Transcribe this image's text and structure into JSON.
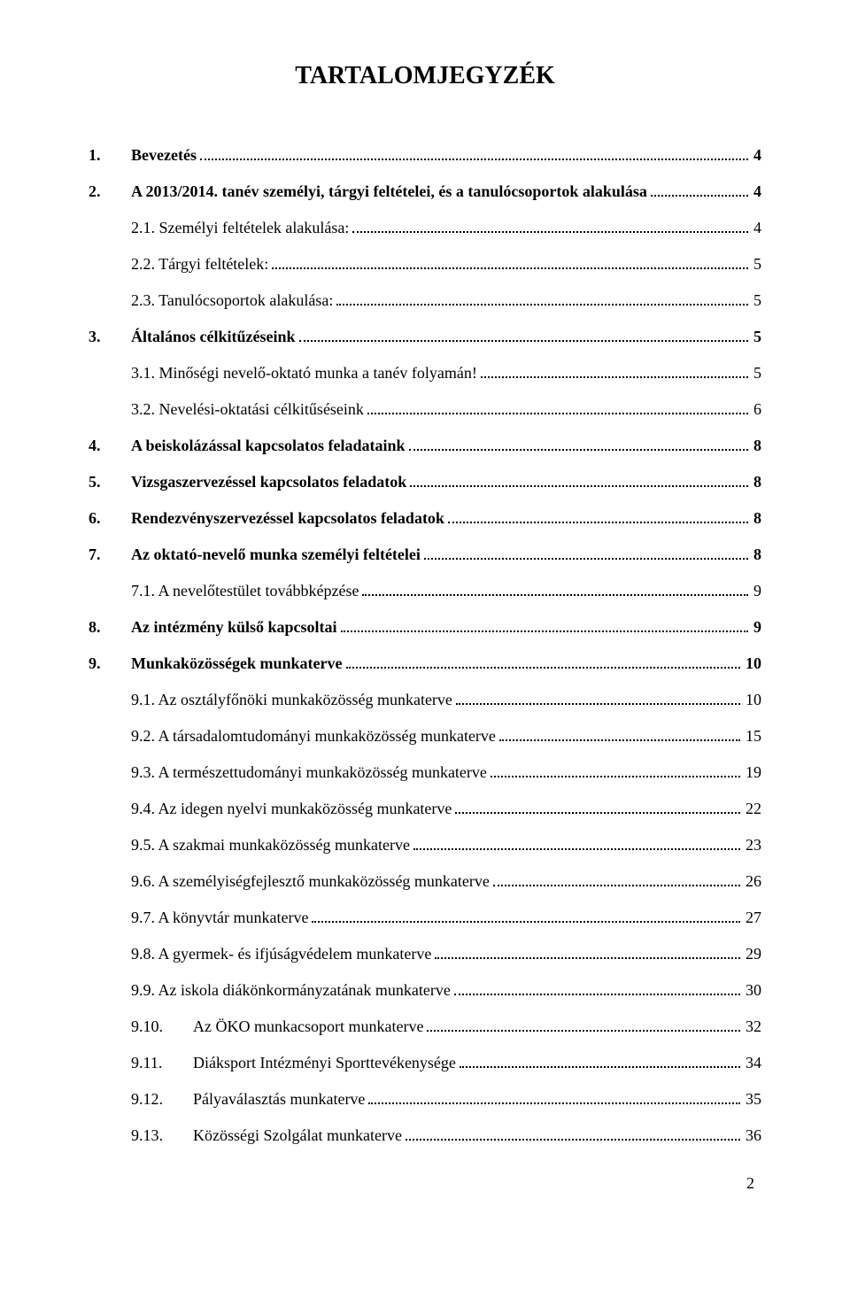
{
  "title": "TARTALOMJEGYZÉK",
  "page_number": "2",
  "typography": {
    "font_family": "Times New Roman",
    "title_fontsize": 28,
    "body_fontsize": 18,
    "text_color": "#000000",
    "background_color": "#ffffff",
    "dot_leader_color": "#000000"
  },
  "entries": [
    {
      "num": "1.",
      "text": "Bevezetés",
      "page": "4",
      "bold": true,
      "indent": 0
    },
    {
      "num": "2.",
      "text": "A 2013/2014. tanév személyi, tárgyi feltételei, és a tanulócsoportok alakulása",
      "page": "4",
      "bold": true,
      "indent": 0
    },
    {
      "num": "",
      "text": "2.1. Személyi feltételek alakulása:",
      "page": "4",
      "bold": false,
      "indent": 1
    },
    {
      "num": "",
      "text": "2.2. Tárgyi feltételek:",
      "page": "5",
      "bold": false,
      "indent": 1
    },
    {
      "num": "",
      "text": "2.3. Tanulócsoportok alakulása:",
      "page": "5",
      "bold": false,
      "indent": 1
    },
    {
      "num": "3.",
      "text": "Általános célkitűzéseink",
      "page": "5",
      "bold": true,
      "indent": 0
    },
    {
      "num": "",
      "text": "3.1. Minőségi nevelő-oktató munka a tanév folyamán!",
      "page": "5",
      "bold": false,
      "indent": 1
    },
    {
      "num": "",
      "text": "3.2. Nevelési-oktatási célkitűséseink",
      "page": "6",
      "bold": false,
      "indent": 1
    },
    {
      "num": "4.",
      "text": "A beiskolázással kapcsolatos feladataink",
      "page": "8",
      "bold": true,
      "indent": 0
    },
    {
      "num": "5.",
      "text": "Vizsgaszervezéssel kapcsolatos feladatok",
      "page": "8",
      "bold": true,
      "indent": 0
    },
    {
      "num": "6.",
      "text": "Rendezvényszervezéssel kapcsolatos feladatok",
      "page": "8",
      "bold": true,
      "indent": 0
    },
    {
      "num": "7.",
      "text": "Az oktató-nevelő munka személyi feltételei",
      "page": "8",
      "bold": true,
      "indent": 0
    },
    {
      "num": "",
      "text": "7.1. A nevelőtestület továbbképzése",
      "page": "9",
      "bold": false,
      "indent": 1
    },
    {
      "num": "8.",
      "text": "Az intézmény külső kapcsoltai",
      "page": "9",
      "bold": true,
      "indent": 0
    },
    {
      "num": "9.",
      "text": "Munkaközösségek munkaterve",
      "page": "10",
      "bold": true,
      "indent": 0
    },
    {
      "num": "",
      "text": "9.1. Az osztályfőnöki munkaközösség munkaterve",
      "page": "10",
      "bold": false,
      "indent": 1
    },
    {
      "num": "",
      "text": "9.2. A társadalomtudományi munkaközösség munkaterve",
      "page": "15",
      "bold": false,
      "indent": 1
    },
    {
      "num": "",
      "text": "9.3. A természettudományi munkaközösség munkaterve",
      "page": "19",
      "bold": false,
      "indent": 1
    },
    {
      "num": "",
      "text": "9.4. Az idegen nyelvi munkaközösség munkaterve",
      "page": "22",
      "bold": false,
      "indent": 1
    },
    {
      "num": "",
      "text": "9.5. A szakmai munkaközösség munkaterve",
      "page": "23",
      "bold": false,
      "indent": 1
    },
    {
      "num": "",
      "text": "9.6. A személyiségfejlesztő munkaközösség munkaterve",
      "page": "26",
      "bold": false,
      "indent": 1
    },
    {
      "num": "",
      "text": "9.7. A könyvtár munkaterve",
      "page": "27",
      "bold": false,
      "indent": 1
    },
    {
      "num": "",
      "text": "9.8. A gyermek- és ifjúságvédelem munkaterve",
      "page": "29",
      "bold": false,
      "indent": 1
    },
    {
      "num": "",
      "text": "9.9. Az iskola diákönkormányzatának munkaterve",
      "page": "30",
      "bold": false,
      "indent": 1
    },
    {
      "num": "9.10.",
      "text": "Az ÖKO munkacsoport munkaterve",
      "page": "32",
      "bold": false,
      "indent": 1
    },
    {
      "num": "9.11.",
      "text": "Diáksport Intézményi Sporttevékenysége",
      "page": "34",
      "bold": false,
      "indent": 1
    },
    {
      "num": "9.12.",
      "text": "Pályaválasztás munkaterve",
      "page": "35",
      "bold": false,
      "indent": 1
    },
    {
      "num": "9.13.",
      "text": "Közösségi Szolgálat munkaterve",
      "page": "36",
      "bold": false,
      "indent": 1
    }
  ]
}
